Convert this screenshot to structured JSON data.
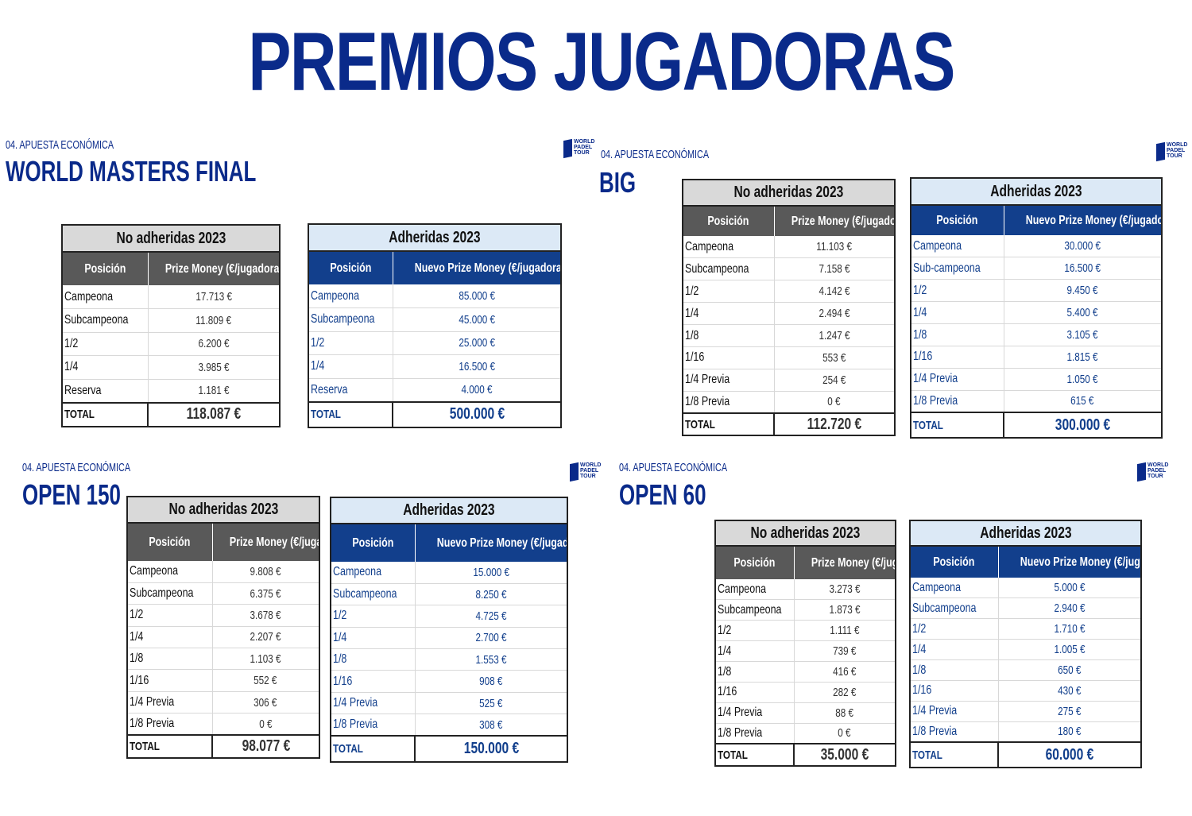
{
  "main_title": "PREMIOS JUGADORAS",
  "logo_text": "WORLD PADEL TOUR",
  "sections": [
    {
      "subtitle": "04. APUESTA ECONÓMICA",
      "title": "WORLD MASTERS FINAL",
      "no_adheridas": {
        "caption": "No adheridas 2023",
        "col_pos": "Posición",
        "col_val": "Prize Money (€/jugadora)",
        "rows": [
          {
            "pos": "Campeona",
            "val": "17.713 €"
          },
          {
            "pos": "Subcampeona",
            "val": "11.809 €"
          },
          {
            "pos": "1/2",
            "val": "6.200 €"
          },
          {
            "pos": "1/4",
            "val": "3.985 €"
          },
          {
            "pos": "Reserva",
            "val": "1.181 €"
          }
        ],
        "total_label": "TOTAL",
        "total_val": "118.087 €"
      },
      "adheridas": {
        "caption": "Adheridas 2023",
        "col_pos": "Posición",
        "col_val": "Nuevo Prize Money (€/jugadora)",
        "rows": [
          {
            "pos": "Campeona",
            "val": "85.000 €"
          },
          {
            "pos": "Subcampeona",
            "val": "45.000 €"
          },
          {
            "pos": "1/2",
            "val": "25.000 €"
          },
          {
            "pos": "1/4",
            "val": "16.500 €"
          },
          {
            "pos": "Reserva",
            "val": "4.000 €"
          }
        ],
        "total_label": "TOTAL",
        "total_val": "500.000 €"
      }
    },
    {
      "subtitle": "04. APUESTA ECONÓMICA",
      "title": "BIG",
      "no_adheridas": {
        "caption": "No adheridas 2023",
        "col_pos": "Posición",
        "col_val": "Prize Money (€/jugadora)",
        "rows": [
          {
            "pos": "Campeona",
            "val": "11.103 €"
          },
          {
            "pos": "Subcampeona",
            "val": "7.158 €"
          },
          {
            "pos": "1/2",
            "val": "4.142 €"
          },
          {
            "pos": "1/4",
            "val": "2.494 €"
          },
          {
            "pos": "1/8",
            "val": "1.247 €"
          },
          {
            "pos": "1/16",
            "val": "553 €"
          },
          {
            "pos": "1/4 Previa",
            "val": "254 €"
          },
          {
            "pos": "1/8 Previa",
            "val": "0 €"
          }
        ],
        "total_label": "TOTAL",
        "total_val": "112.720 €"
      },
      "adheridas": {
        "caption": "Adheridas 2023",
        "col_pos": "Posición",
        "col_val": "Nuevo Prize Money (€/jugadora)",
        "rows": [
          {
            "pos": "Campeona",
            "val": "30.000 €"
          },
          {
            "pos": "Sub-campeona",
            "val": "16.500 €"
          },
          {
            "pos": "1/2",
            "val": "9.450 €"
          },
          {
            "pos": "1/4",
            "val": "5.400 €"
          },
          {
            "pos": "1/8",
            "val": "3.105 €"
          },
          {
            "pos": "1/16",
            "val": "1.815 €"
          },
          {
            "pos": "1/4 Previa",
            "val": "1.050 €"
          },
          {
            "pos": "1/8 Previa",
            "val": "615 €"
          }
        ],
        "total_label": "TOTAL",
        "total_val": "300.000 €"
      }
    },
    {
      "subtitle": "04. APUESTA ECONÓMICA",
      "title": "OPEN 150",
      "no_adheridas": {
        "caption": "No adheridas 2023",
        "col_pos": "Posición",
        "col_val": "Prize Money (€/jugadora)",
        "rows": [
          {
            "pos": "Campeona",
            "val": "9.808 €"
          },
          {
            "pos": "Subcampeona",
            "val": "6.375 €"
          },
          {
            "pos": "1/2",
            "val": "3.678 €"
          },
          {
            "pos": "1/4",
            "val": "2.207 €"
          },
          {
            "pos": "1/8",
            "val": "1.103 €"
          },
          {
            "pos": "1/16",
            "val": "552 €"
          },
          {
            "pos": "1/4 Previa",
            "val": "306 €"
          },
          {
            "pos": "1/8 Previa",
            "val": "0 €"
          }
        ],
        "total_label": "TOTAL",
        "total_val": "98.077 €"
      },
      "adheridas": {
        "caption": "Adheridas 2023",
        "col_pos": "Posición",
        "col_val": "Nuevo Prize Money (€/jugadora)",
        "rows": [
          {
            "pos": "Campeona",
            "val": "15.000 €"
          },
          {
            "pos": "Subcampeona",
            "val": "8.250 €"
          },
          {
            "pos": "1/2",
            "val": "4.725 €"
          },
          {
            "pos": "1/4",
            "val": "2.700 €"
          },
          {
            "pos": "1/8",
            "val": "1.553 €"
          },
          {
            "pos": "1/16",
            "val": "908 €"
          },
          {
            "pos": "1/4 Previa",
            "val": "525 €"
          },
          {
            "pos": "1/8 Previa",
            "val": "308 €"
          }
        ],
        "total_label": "TOTAL",
        "total_val": "150.000 €"
      }
    },
    {
      "subtitle": "04. APUESTA ECONÓMICA",
      "title": "OPEN 60",
      "no_adheridas": {
        "caption": "No adheridas 2023",
        "col_pos": "Posición",
        "col_val": "Prize Money (€/jugadora)",
        "rows": [
          {
            "pos": "Campeona",
            "val": "3.273 €"
          },
          {
            "pos": "Subcampeona",
            "val": "1.873 €"
          },
          {
            "pos": "1/2",
            "val": "1.111 €"
          },
          {
            "pos": "1/4",
            "val": "739 €"
          },
          {
            "pos": "1/8",
            "val": "416 €"
          },
          {
            "pos": "1/16",
            "val": "282 €"
          },
          {
            "pos": "1/4 Previa",
            "val": "88 €"
          },
          {
            "pos": "1/8 Previa",
            "val": "0 €"
          }
        ],
        "total_label": "TOTAL",
        "total_val": "35.000 €"
      },
      "adheridas": {
        "caption": "Adheridas 2023",
        "col_pos": "Posición",
        "col_val": "Nuevo Prize Money (€/jugadora)",
        "rows": [
          {
            "pos": "Campeona",
            "val": "5.000 €"
          },
          {
            "pos": "Subcampeona",
            "val": "2.940 €"
          },
          {
            "pos": "1/2",
            "val": "1.710 €"
          },
          {
            "pos": "1/4",
            "val": "1.005 €"
          },
          {
            "pos": "1/8",
            "val": "650 €"
          },
          {
            "pos": "1/16",
            "val": "430 €"
          },
          {
            "pos": "1/4 Previa",
            "val": "275 €"
          },
          {
            "pos": "1/8 Previa",
            "val": "180 €"
          }
        ],
        "total_label": "TOTAL",
        "total_val": "60.000 €"
      }
    }
  ]
}
